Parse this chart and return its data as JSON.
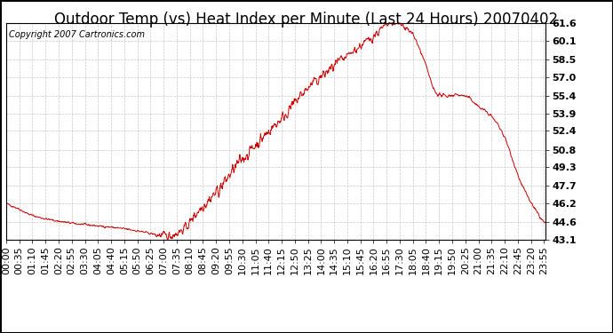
{
  "title": "Outdoor Temp (vs) Heat Index per Minute (Last 24 Hours) 20070402",
  "copyright_text": "Copyright 2007 Cartronics.com",
  "line_color": "#cc0000",
  "background_color": "#ffffff",
  "plot_bg_color": "#ffffff",
  "grid_color": "#bbbbbb",
  "yticks": [
    43.1,
    44.6,
    46.2,
    47.7,
    49.3,
    50.8,
    52.4,
    53.9,
    55.4,
    57.0,
    58.5,
    60.1,
    61.6
  ],
  "xtick_labels": [
    "00:00",
    "00:35",
    "01:10",
    "01:45",
    "02:20",
    "02:55",
    "03:30",
    "04:05",
    "04:40",
    "05:15",
    "05:50",
    "06:25",
    "07:00",
    "07:35",
    "08:10",
    "08:45",
    "09:20",
    "09:55",
    "10:30",
    "11:05",
    "11:40",
    "12:15",
    "12:50",
    "13:25",
    "14:00",
    "14:35",
    "15:10",
    "15:45",
    "16:20",
    "16:55",
    "17:30",
    "18:05",
    "18:40",
    "19:15",
    "19:50",
    "20:25",
    "21:00",
    "21:35",
    "22:10",
    "22:45",
    "23:20",
    "23:55"
  ],
  "ylim": [
    43.1,
    61.6
  ],
  "title_fontsize": 12,
  "copyright_fontsize": 7,
  "tick_fontsize": 8,
  "ctrl_x": [
    0,
    15,
    30,
    60,
    90,
    120,
    180,
    240,
    300,
    360,
    390,
    410,
    420,
    430,
    450,
    480,
    510,
    540,
    570,
    600,
    630,
    660,
    690,
    720,
    750,
    780,
    810,
    840,
    870,
    900,
    930,
    960,
    975,
    990,
    1005,
    1020,
    1035,
    1050,
    1065,
    1080,
    1095,
    1110,
    1125,
    1140,
    1155,
    1170,
    1200,
    1230,
    1260,
    1290,
    1320,
    1380,
    1435
  ],
  "ctrl_y": [
    46.2,
    46.0,
    45.8,
    45.3,
    45.0,
    44.8,
    44.5,
    44.3,
    44.1,
    43.8,
    43.6,
    43.5,
    43.4,
    43.4,
    43.6,
    44.2,
    45.5,
    46.5,
    47.5,
    48.8,
    50.0,
    51.0,
    52.0,
    53.0,
    54.0,
    55.2,
    56.2,
    57.0,
    57.8,
    58.5,
    59.3,
    60.0,
    60.4,
    60.8,
    61.2,
    61.5,
    61.6,
    61.5,
    61.3,
    60.8,
    60.0,
    58.8,
    57.5,
    56.0,
    55.5,
    55.4,
    55.5,
    55.3,
    54.5,
    53.8,
    52.5,
    47.5,
    44.6
  ]
}
